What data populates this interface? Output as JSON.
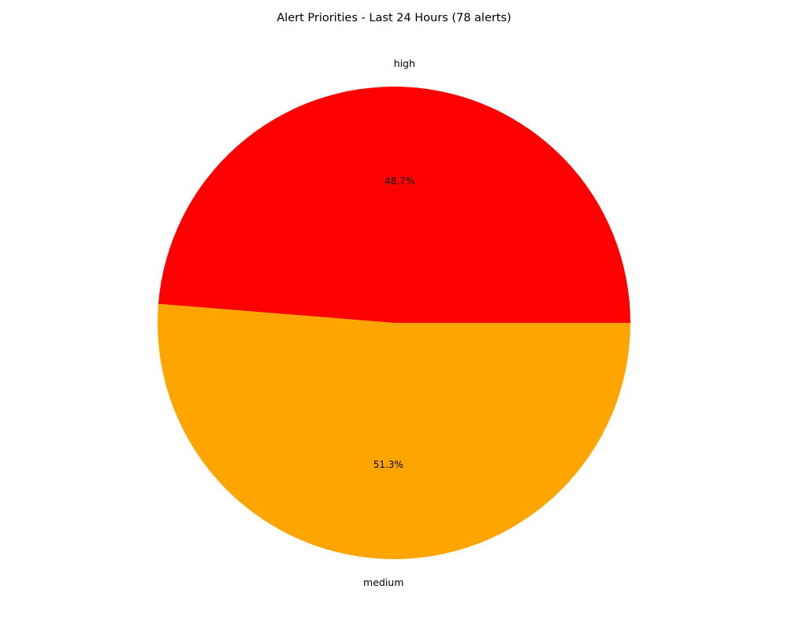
{
  "chart_data": {
    "type": "pie",
    "title": "Alert Priorities - Last 24 Hours (78 alerts)",
    "slices": [
      {
        "label": "high",
        "value": 38,
        "percent_label": "48.7%",
        "color": "#ff0000"
      },
      {
        "label": "medium",
        "value": 40,
        "percent_label": "51.3%",
        "color": "#ffa500"
      }
    ],
    "start_angle_deg": 0,
    "direction": "counterclockwise",
    "legend": "none"
  }
}
